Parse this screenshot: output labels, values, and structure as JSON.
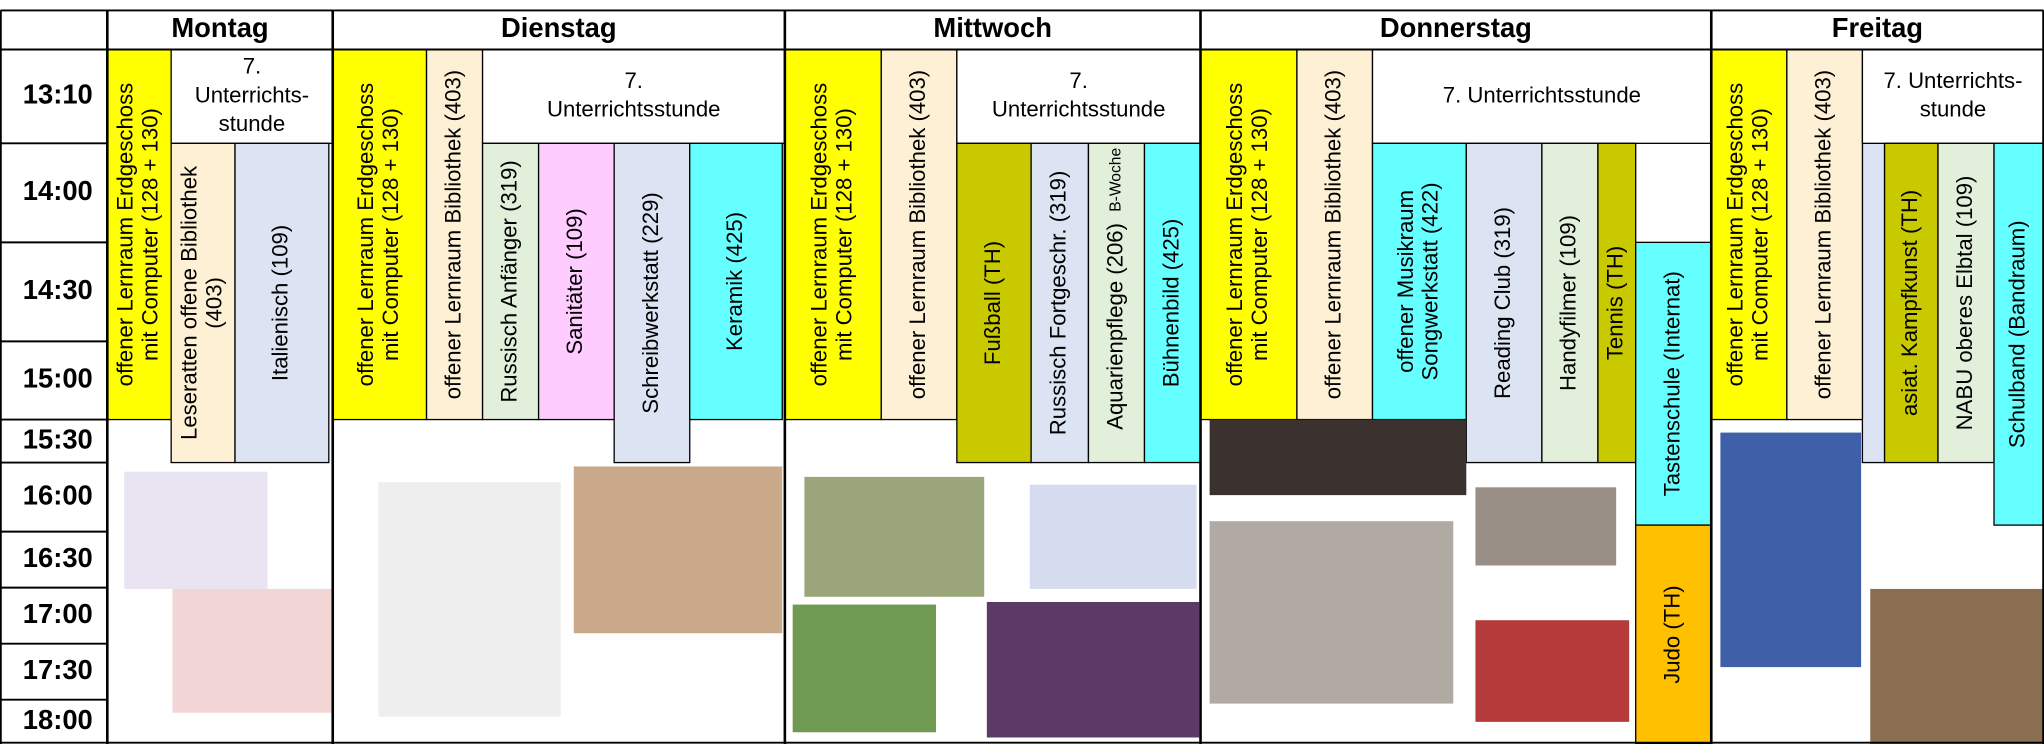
{
  "times": [
    "13:10",
    "14:00",
    "14:30",
    "15:00",
    "15:30",
    "16:00",
    "16:30",
    "17:00",
    "17:30",
    "18:00"
  ],
  "days": [
    {
      "name": "Montag",
      "events": [
        {
          "lines": [
            "offener Lernraum Erdgeschoss",
            "mit Computer (128 + 130)"
          ]
        },
        {
          "lines": [
            "7.",
            "Unterrichts-",
            "stunde"
          ]
        },
        {
          "lines": [
            "Leseratten offene Bibliothek",
            "(403)"
          ]
        },
        {
          "lines": [
            "Italienisch (109)"
          ]
        }
      ]
    },
    {
      "name": "Dienstag",
      "events": [
        {
          "lines": [
            "offener Lernraum Erdgeschoss",
            "mit Computer (128 + 130)"
          ]
        },
        {
          "lines": [
            "offener Lernraum Bibliothek (403)"
          ]
        },
        {
          "lines": [
            "7.",
            "Unterrichtsstunde"
          ]
        },
        {
          "lines": [
            "Russisch Anfänger (319)"
          ]
        },
        {
          "lines": [
            "Sanitäter (109)"
          ]
        },
        {
          "lines": [
            "Schreibwerkstatt (229)"
          ]
        },
        {
          "lines": [
            "Keramik (425)"
          ]
        }
      ]
    },
    {
      "name": "Mittwoch",
      "events": [
        {
          "lines": [
            "offener Lernraum Erdgeschoss",
            "mit Computer (128 + 130)"
          ]
        },
        {
          "lines": [
            "offener Lernraum Bibliothek (403)"
          ]
        },
        {
          "lines": [
            "7.",
            "Unterrichtsstunde"
          ]
        },
        {
          "lines": [
            "Fußball (TH)"
          ]
        },
        {
          "lines": [
            "Russisch Fortgeschr. (319)"
          ]
        },
        {
          "lines": [
            "Aquarienpflege (206)"
          ],
          "note": "B-Woche"
        },
        {
          "lines": [
            "Bühnenbild (425)"
          ]
        }
      ]
    },
    {
      "name": "Donnerstag",
      "events": [
        {
          "lines": [
            "offener Lernraum Erdgeschoss",
            "mit Computer (128 + 130)"
          ]
        },
        {
          "lines": [
            "offener Lernraum Bibliothek (403)"
          ]
        },
        {
          "lines": [
            "7. Unterrichtsstunde"
          ]
        },
        {
          "lines": [
            "offener Musikraum",
            "Songwerkstatt (422)"
          ]
        },
        {
          "lines": [
            "Reading Club (319)"
          ]
        },
        {
          "lines": [
            "Handyfilmer (109)"
          ]
        },
        {
          "lines": [
            "Tennis (TH)"
          ]
        },
        {
          "lines": [
            "Tastenschule (Internat)"
          ]
        },
        {
          "lines": [
            "Judo (TH)"
          ]
        }
      ]
    },
    {
      "name": "Freitag",
      "events": [
        {
          "lines": [
            "offener Lernraum Erdgeschoss",
            "mit Computer (128 + 130)"
          ]
        },
        {
          "lines": [
            "offener Lernraum Bibliothek (403)"
          ]
        },
        {
          "lines": [
            "7. Unterrichts-",
            "stunde"
          ]
        },
        {
          "lines": [
            "asiat. Kampfkunst (TH)"
          ]
        },
        {
          "lines": [
            "NABU oberes Elbtal (109)"
          ]
        },
        {
          "lines": [
            "Schulband (Bandraum)"
          ]
        }
      ]
    }
  ]
}
